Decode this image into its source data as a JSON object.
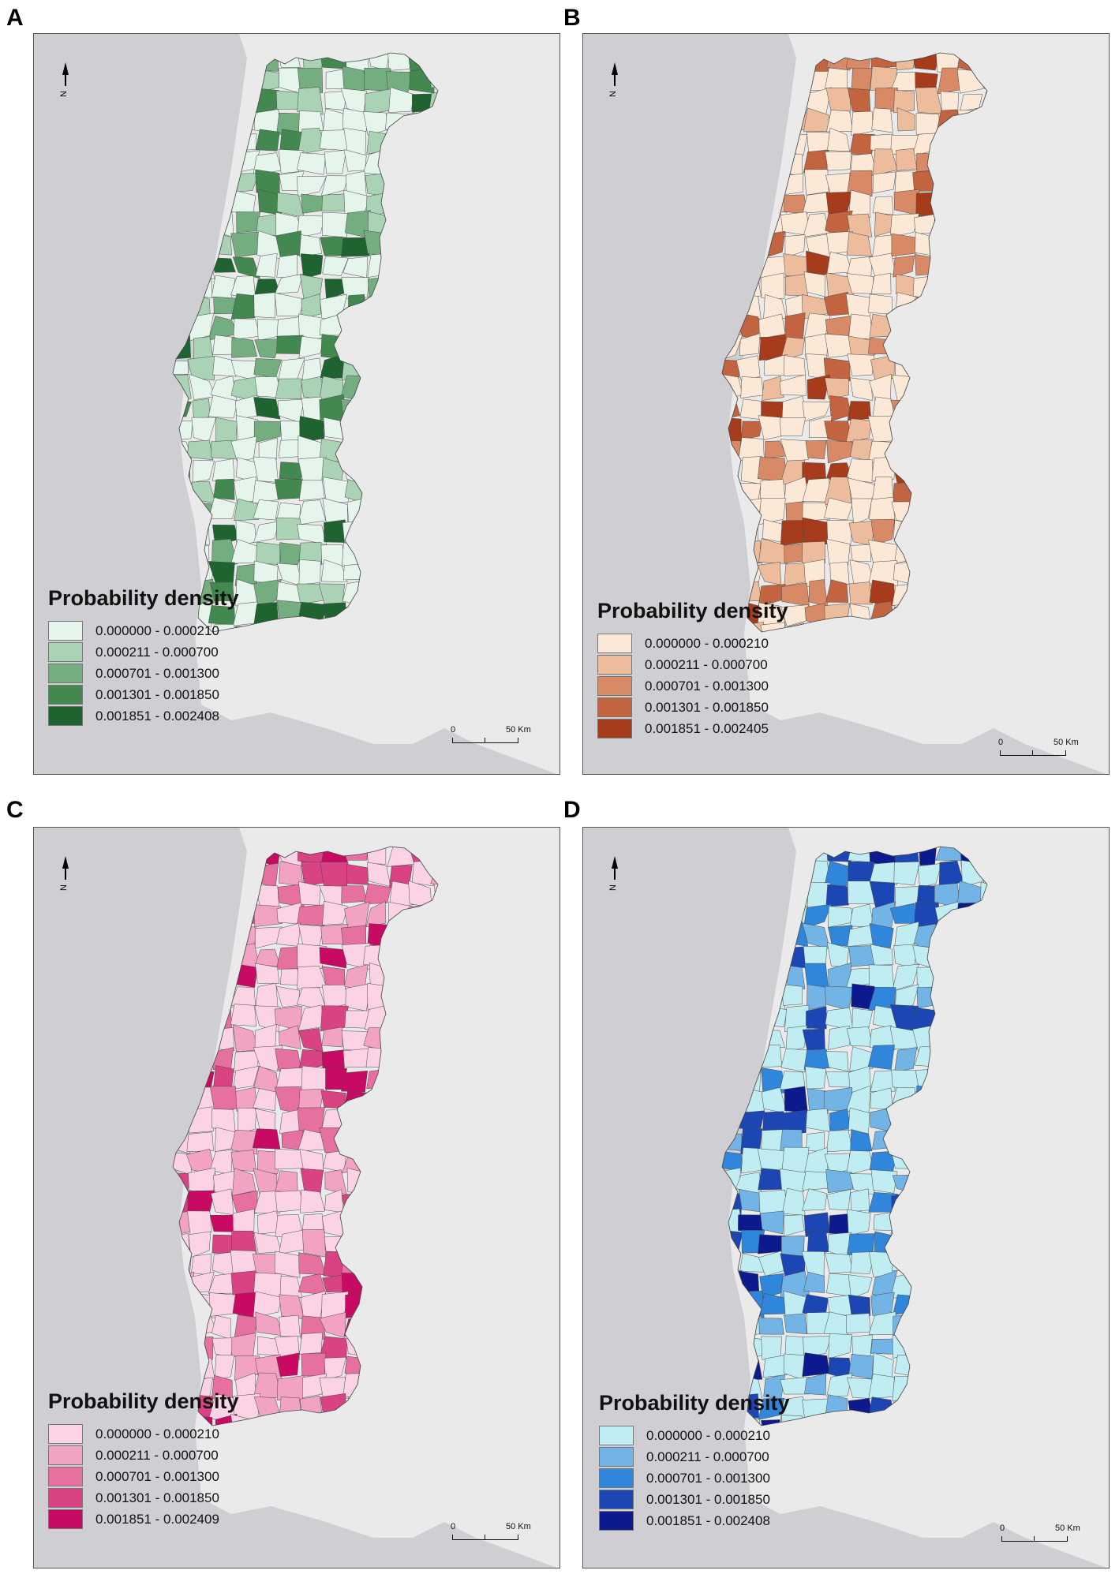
{
  "panels": [
    {
      "letter": "A",
      "legend": {
        "title": "Probability density",
        "classes": [
          {
            "label": "0.000000 - 0.000210",
            "color": "#e6f5ec"
          },
          {
            "label": "0.000211 - 0.000700",
            "color": "#a9d3b4"
          },
          {
            "label": "0.000701 - 0.001300",
            "color": "#73ad80"
          },
          {
            "label": "0.001301 - 0.001850",
            "color": "#43894f"
          },
          {
            "label": "0.001851 - 0.002408",
            "color": "#1e6330"
          }
        ]
      },
      "scale": {
        "start": "0",
        "end": "50 Km"
      },
      "north": "N"
    },
    {
      "letter": "B",
      "legend": {
        "title": "Probability density",
        "classes": [
          {
            "label": "0.000000 - 0.000210",
            "color": "#fbe8d6"
          },
          {
            "label": "0.000211 - 0.000700",
            "color": "#edbc9c"
          },
          {
            "label": "0.000701 - 0.001300",
            "color": "#d88a66"
          },
          {
            "label": "0.001301 - 0.001850",
            "color": "#c2643f"
          },
          {
            "label": "0.001851 - 0.002405",
            "color": "#a63c1c"
          }
        ]
      },
      "scale": {
        "start": "0",
        "end": "50 Km"
      },
      "north": "N"
    },
    {
      "letter": "C",
      "legend": {
        "title": "Probability density",
        "classes": [
          {
            "label": "0.000000 - 0.000210",
            "color": "#fbd3e4"
          },
          {
            "label": "0.000211 - 0.000700",
            "color": "#f2a2c3"
          },
          {
            "label": "0.000701 - 0.001300",
            "color": "#e670a0"
          },
          {
            "label": "0.001301 - 0.001850",
            "color": "#d94283"
          },
          {
            "label": "0.001851 - 0.002409",
            "color": "#c80a64"
          }
        ]
      },
      "scale": {
        "start": "0",
        "end": "50 Km"
      },
      "north": "N"
    },
    {
      "letter": "D",
      "legend": {
        "title": "Probability density",
        "classes": [
          {
            "label": "0.000000 - 0.000210",
            "color": "#bfedf2"
          },
          {
            "label": "0.000211 - 0.000700",
            "color": "#72b4e6"
          },
          {
            "label": "0.000701 - 0.001300",
            "color": "#2f86da"
          },
          {
            "label": "0.001301 - 0.001850",
            "color": "#1c46b3"
          },
          {
            "label": "0.001851 - 0.002408",
            "color": "#0c1a8e"
          }
        ]
      },
      "scale": {
        "start": "0",
        "end": "50 Km"
      },
      "north": "N"
    }
  ]
}
